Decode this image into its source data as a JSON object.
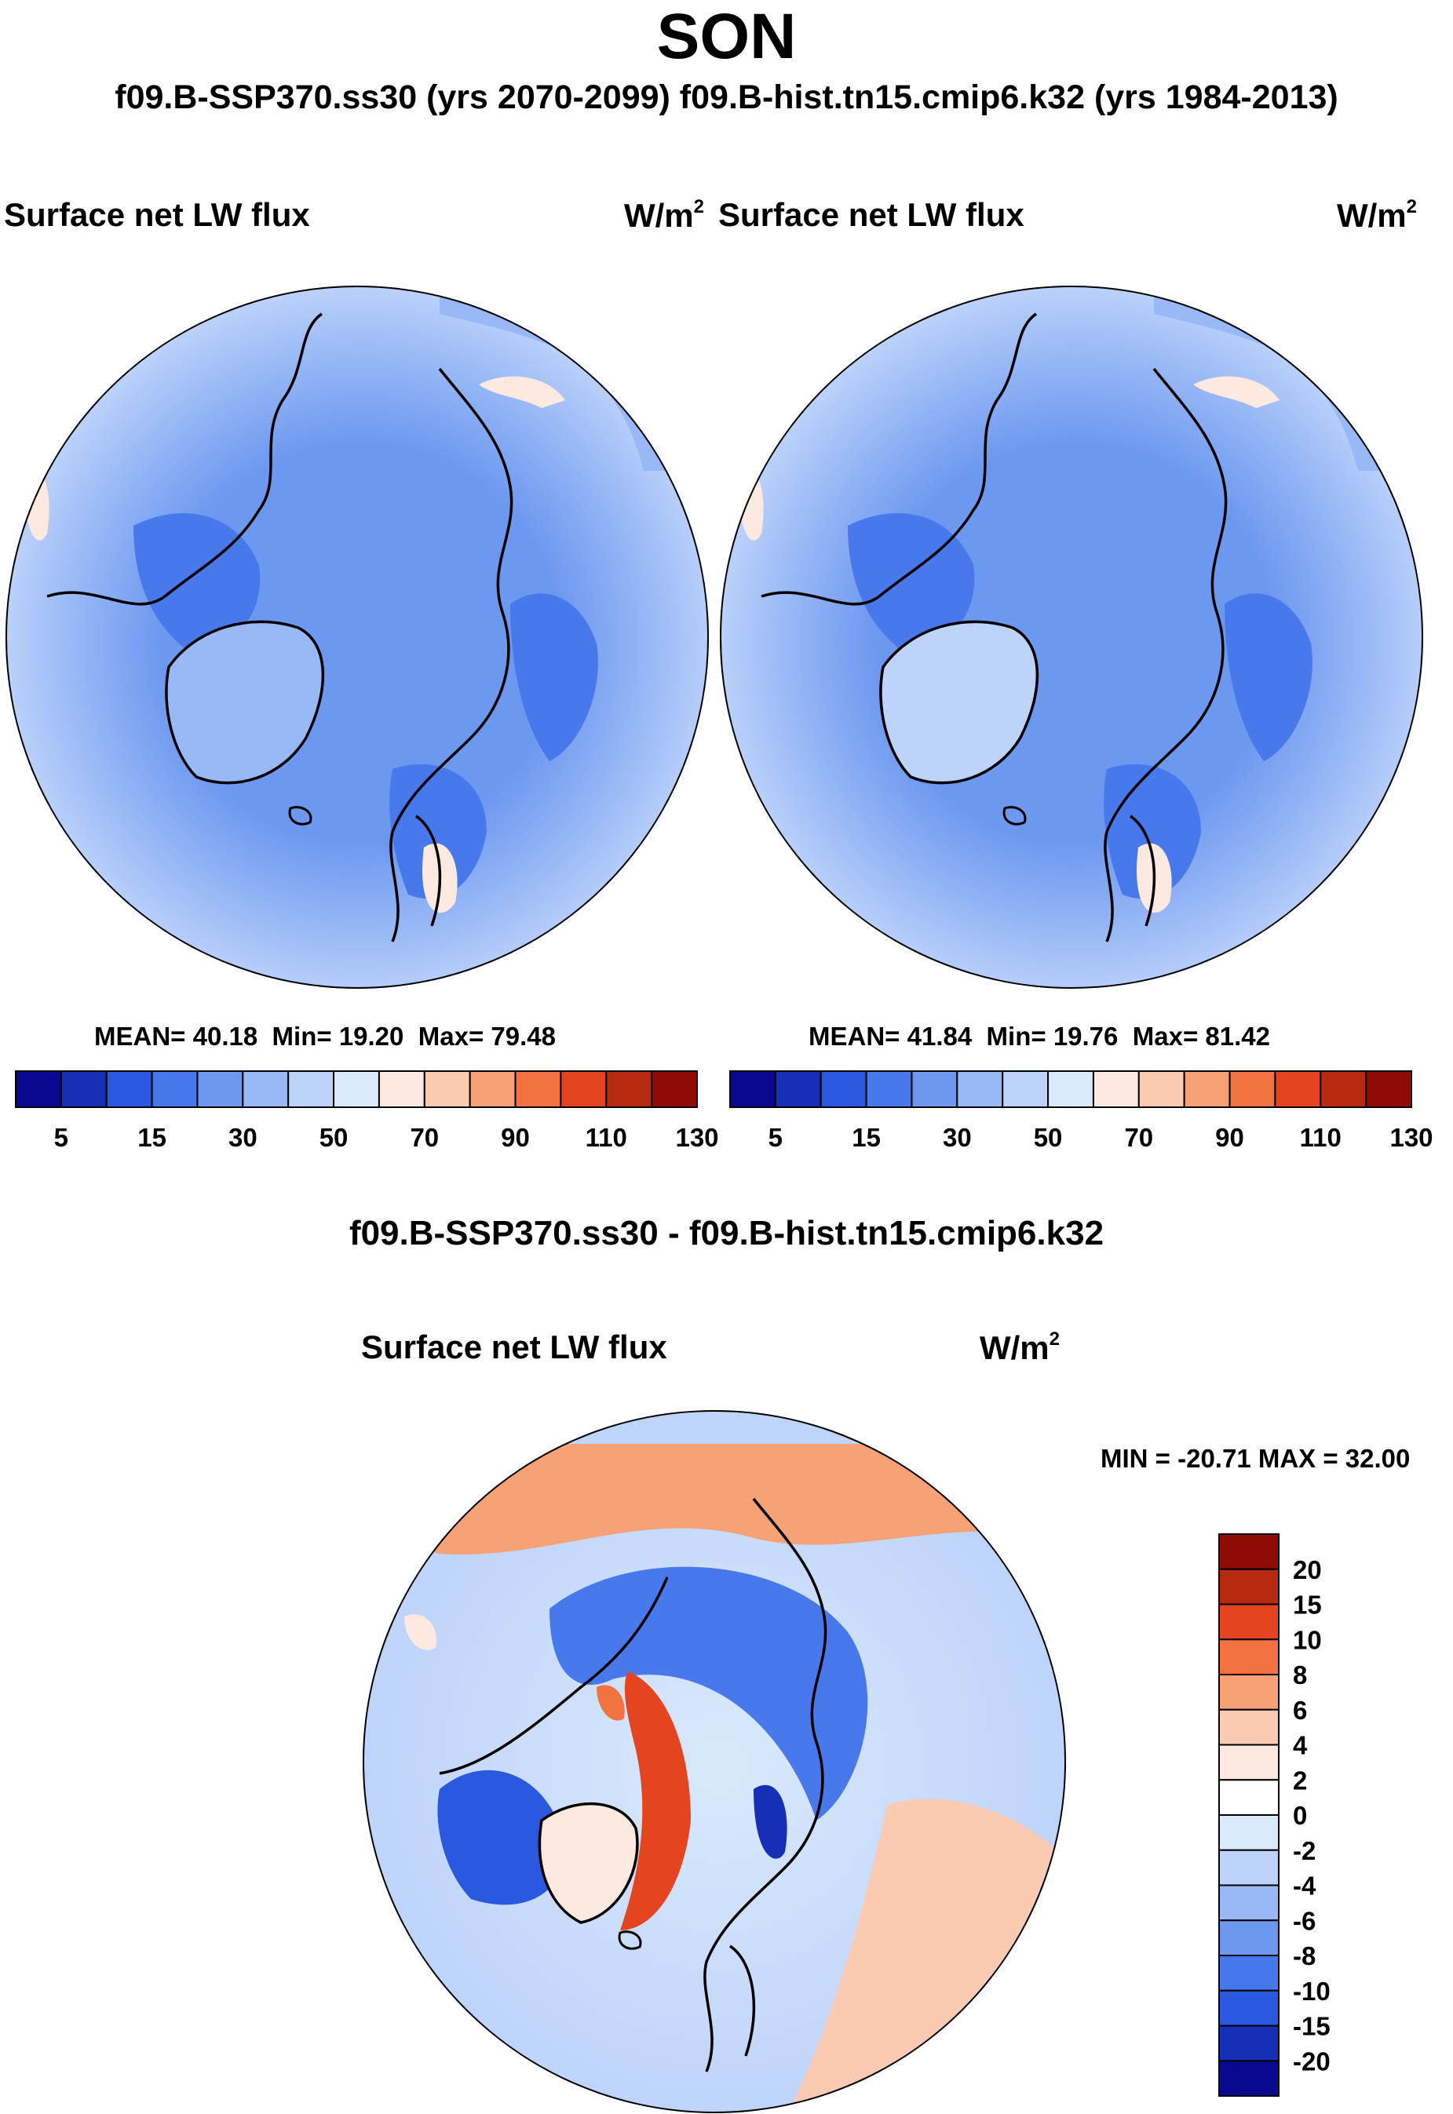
{
  "chart_data": {
    "type": "heatmap",
    "title": "SON",
    "subtitle": "f09.B-SSP370.ss30 (yrs 2070-2099)  f09.B-hist.tn15.cmip6.k32 (yrs 1984-2013)",
    "projection": "north polar stereographic",
    "panels": [
      {
        "id": "test",
        "title": "Surface net LW flux",
        "units": "W/m",
        "units_sup": "2",
        "stats": {
          "mean_label": "MEAN=",
          "mean": "40.18",
          "min_label": "Min=",
          "min": "19.20",
          "max_label": "Max=",
          "max": "79.48"
        },
        "colorbar": {
          "orientation": "horizontal",
          "levels": [
            5,
            10,
            15,
            20,
            30,
            40,
            50,
            60,
            70,
            80,
            90,
            100,
            110,
            120,
            130
          ],
          "tick_labels": [
            "5",
            "15",
            "30",
            "50",
            "70",
            "90",
            "110",
            "130"
          ],
          "colors": [
            "#08088e",
            "#1530b6",
            "#2859de",
            "#4779ec",
            "#6d98f0",
            "#98b8f6",
            "#bdd3fa",
            "#dbe9fc",
            "#fde9df",
            "#fbcab3",
            "#f7a176",
            "#f2733f",
            "#e4451e",
            "#b82a10",
            "#8e0b06"
          ]
        }
      },
      {
        "id": "control",
        "title": "Surface net LW flux",
        "units": "W/m",
        "units_sup": "2",
        "stats": {
          "mean_label": "MEAN=",
          "mean": "41.84",
          "min_label": "Min=",
          "min": "19.76",
          "max_label": "Max=",
          "max": "81.42"
        },
        "colorbar": {
          "orientation": "horizontal",
          "levels": [
            5,
            10,
            15,
            20,
            30,
            40,
            50,
            60,
            70,
            80,
            90,
            100,
            110,
            120,
            130
          ],
          "tick_labels": [
            "5",
            "15",
            "30",
            "50",
            "70",
            "90",
            "110",
            "130"
          ],
          "colors": [
            "#08088e",
            "#1530b6",
            "#2859de",
            "#4779ec",
            "#6d98f0",
            "#98b8f6",
            "#bdd3fa",
            "#dbe9fc",
            "#fde9df",
            "#fbcab3",
            "#f7a176",
            "#f2733f",
            "#e4451e",
            "#b82a10",
            "#8e0b06"
          ]
        }
      },
      {
        "id": "difference",
        "header": "f09.B-SSP370.ss30 - f09.B-hist.tn15.cmip6.k32",
        "title": "Surface net LW flux",
        "units": "W/m",
        "units_sup": "2",
        "stats": {
          "text": "MIN = -20.71 MAX =  32.00",
          "min": -20.71,
          "max": 32.0
        },
        "colorbar": {
          "orientation": "vertical",
          "levels": [
            20,
            15,
            10,
            8,
            6,
            4,
            2,
            0,
            -2,
            -4,
            -6,
            -8,
            -10,
            -15,
            -20
          ],
          "tick_labels": [
            "20",
            "15",
            "10",
            "8",
            "6",
            "4",
            "2",
            "0",
            "-2",
            "-4",
            "-6",
            "-8",
            "-10",
            "-15",
            "-20"
          ],
          "colors": [
            "#8e0b06",
            "#b82a10",
            "#e4451e",
            "#f2733f",
            "#f7a176",
            "#fbcab3",
            "#fde9df",
            "#ffffff",
            "#dbe9fc",
            "#bdd3fa",
            "#98b8f6",
            "#6d98f0",
            "#4779ec",
            "#2859de",
            "#1530b6",
            "#08088e"
          ]
        }
      }
    ]
  }
}
